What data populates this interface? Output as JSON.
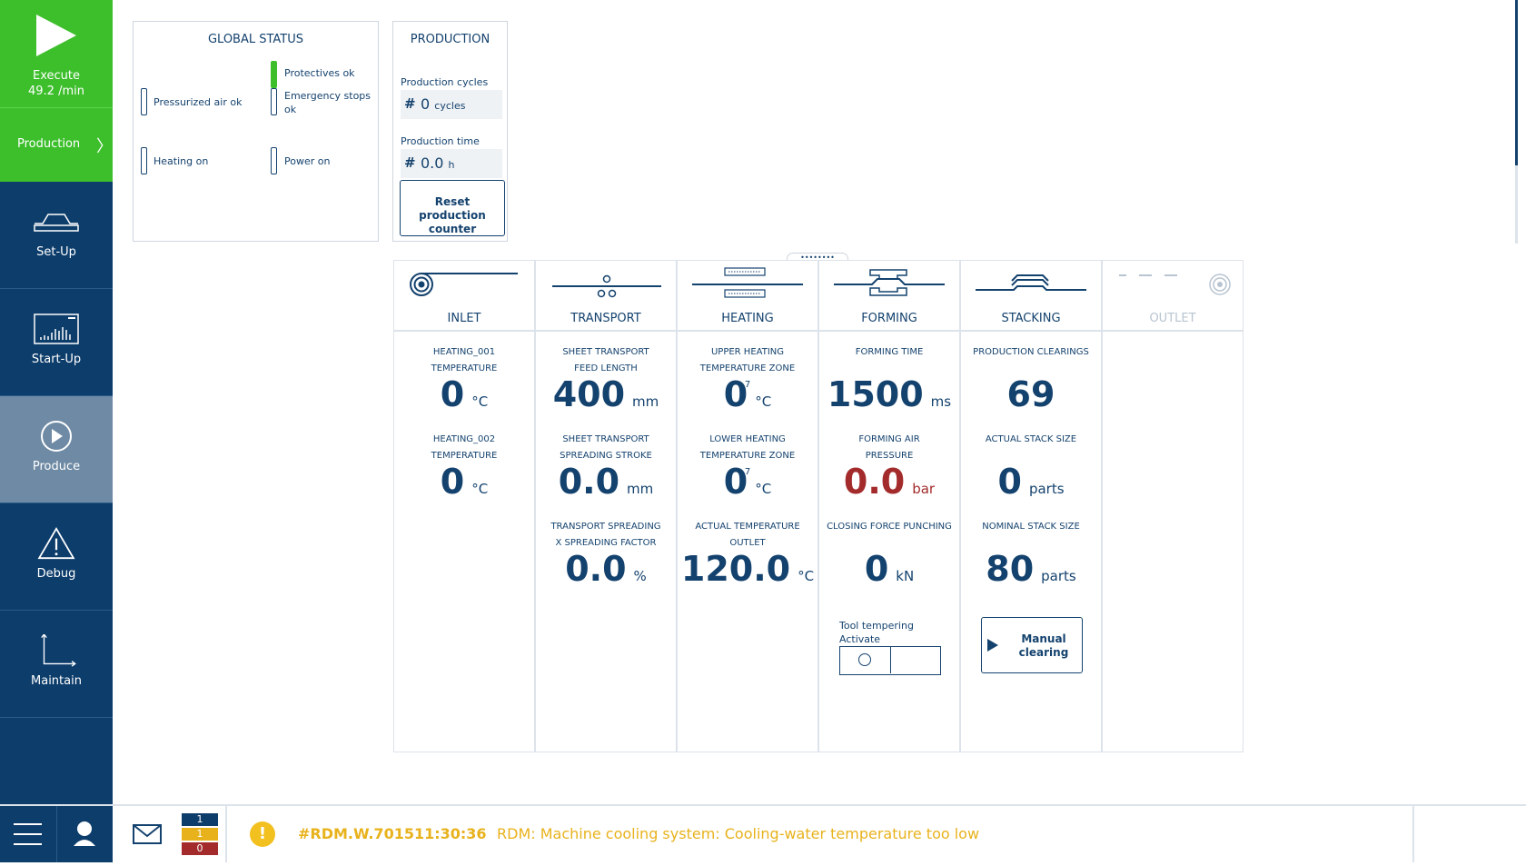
{
  "sidebar": {
    "execute": {
      "label": "Execute",
      "rate": "49.2 /min"
    },
    "production": {
      "label": "Production",
      "chevron": "〉"
    },
    "items": [
      {
        "label": "Set-Up",
        "icon": "setup-icon"
      },
      {
        "label": "Start-Up",
        "icon": "startup-chart-icon"
      },
      {
        "label": "Produce",
        "icon": "play-circle-icon"
      },
      {
        "label": "Debug",
        "icon": "warning-triangle-icon"
      },
      {
        "label": "Maintain",
        "icon": "axes-icon"
      }
    ]
  },
  "global_status": {
    "title": "GLOBAL STATUS",
    "items": [
      {
        "label": "Protectives ok",
        "on": true
      },
      {
        "label": "Pressurized air ok",
        "on": false
      },
      {
        "label": "Emergency stops ok",
        "on": false
      },
      {
        "label": "Heating on",
        "on": false
      },
      {
        "label": "Power on",
        "on": false
      }
    ]
  },
  "production": {
    "title": "PRODUCTION",
    "cycles_label": "Production cycles",
    "hash": "#",
    "cycles_value": "0",
    "cycles_unit": "cycles",
    "time_label": "Production time",
    "time_value": "0.0",
    "time_unit": "h",
    "reset_label": "Reset production counter"
  },
  "handle": "••••••••",
  "stages": {
    "inlet": {
      "name": "INLET",
      "values": [
        {
          "label": "HEATING_001 TEMPERATURE",
          "value": "0",
          "unit": "°C"
        },
        {
          "label": "HEATING_002 TEMPERATURE",
          "value": "0",
          "unit": "°C"
        }
      ]
    },
    "transport": {
      "name": "TRANSPORT",
      "values": [
        {
          "label": "SHEET TRANSPORT FEED LENGTH",
          "value": "400",
          "unit": "mm"
        },
        {
          "label": "SHEET TRANSPORT SPREADING STROKE",
          "value": "0.0",
          "unit": "mm"
        },
        {
          "label": "TRANSPORT SPREADING X SPREADING FACTOR",
          "value": "0.0",
          "unit": "%"
        }
      ]
    },
    "heating": {
      "name": "HEATING",
      "values": [
        {
          "label": "UPPER HEATING TEMPERATURE ZONE 7",
          "value": "0",
          "unit": "°C"
        },
        {
          "label": "LOWER HEATING TEMPERATURE ZONE 7",
          "value": "0",
          "unit": "°C"
        },
        {
          "label": "ACTUAL TEMPERATURE OUTLET",
          "value": "120.0",
          "unit": "°C"
        }
      ]
    },
    "forming": {
      "name": "FORMING",
      "values": [
        {
          "label": "FORMING TIME",
          "value": "1500",
          "unit": "ms"
        },
        {
          "label": "FORMING AIR PRESSURE",
          "value": "0.0",
          "unit": "bar"
        },
        {
          "label": "CLOSING FORCE PUNCHING",
          "value": "0",
          "unit": "kN"
        }
      ],
      "tool_tempering_label": "Tool tempering Activate",
      "toggle_on": false
    },
    "stacking": {
      "name": "STACKING",
      "values": [
        {
          "label": "PRODUCTION CLEARINGS",
          "value": "69",
          "unit": ""
        },
        {
          "label": "ACTUAL STACK SIZE",
          "value": "0",
          "unit": "parts"
        },
        {
          "label": "NOMINAL STACK SIZE",
          "value": "80",
          "unit": "parts"
        }
      ],
      "manual_clearing_label": "Manual clearing"
    },
    "outlet": {
      "name": "OUTLET"
    }
  },
  "bottom": {
    "counts": [
      "1",
      "1",
      "0"
    ],
    "count_colors": [
      "#0d3d6b",
      "#e8b21c",
      "#a32b2b"
    ],
    "warning_glyph": "!",
    "code": "#RDM.W.701511:30:36",
    "message": "RDM: Machine cooling system: Cooling-water temperature too low"
  },
  "colors": {
    "brand": "#0d3d6b",
    "active": "#3dbf2c",
    "warning": "#e8b21c",
    "alarm": "#a32b2b"
  }
}
